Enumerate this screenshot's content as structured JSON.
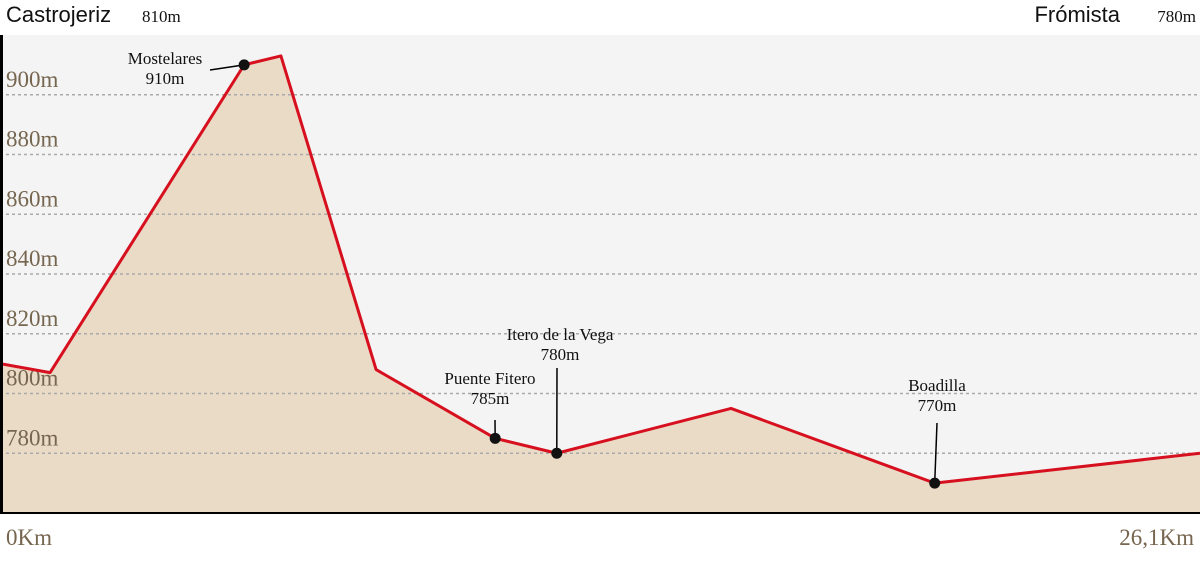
{
  "chart_data": {
    "type": "area",
    "start_name": "Castrojeriz",
    "start_label": "810m",
    "end_name": "Frómista",
    "end_label": "780m",
    "x": [
      0,
      1.09,
      5.31,
      6.11,
      8.18,
      10.77,
      12.11,
      15.9,
      20.33,
      26.1
    ],
    "series": [
      {
        "color": "#d7101f",
        "fill": "#eadbc6",
        "values": [
          810,
          807,
          910,
          913,
          808,
          785,
          780,
          795,
          770,
          780
        ]
      }
    ],
    "xlim": [
      0,
      26.1
    ],
    "xticks": [
      {
        "value": 0,
        "label": "0Km"
      },
      {
        "value": 26.1,
        "label": "26,1Km"
      }
    ],
    "ylim": [
      760,
      920
    ],
    "yticks": [
      {
        "value": 780,
        "label": "780m"
      },
      {
        "value": 800,
        "label": "800m"
      },
      {
        "value": 820,
        "label": "820m"
      },
      {
        "value": 840,
        "label": "840m"
      },
      {
        "value": 860,
        "label": "860m"
      },
      {
        "value": 880,
        "label": "880m"
      },
      {
        "value": 900,
        "label": "900m"
      }
    ],
    "grid": true,
    "annotations": [
      {
        "name": "Mostelares",
        "label": "910m",
        "x": 5.31,
        "value": 910
      },
      {
        "name": "Puente Fitero",
        "label": "785m",
        "x": 10.77,
        "value": 785
      },
      {
        "name": "Itero de la Vega",
        "label": "780m",
        "x": 12.11,
        "value": 780
      },
      {
        "name": "Boadilla",
        "label": "770m",
        "x": 20.33,
        "value": 770
      }
    ]
  }
}
